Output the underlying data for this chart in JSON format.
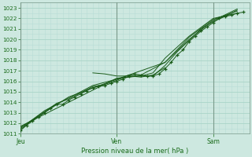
{
  "xlabel": "Pression niveau de la mer( hPa )",
  "ylim": [
    1011,
    1023.5
  ],
  "yticks": [
    1011,
    1012,
    1013,
    1014,
    1015,
    1016,
    1017,
    1018,
    1019,
    1020,
    1021,
    1022,
    1023
  ],
  "day_labels": [
    "Jeu",
    "Ven",
    "Sam"
  ],
  "day_positions": [
    0,
    48,
    96
  ],
  "xlim": [
    0,
    114
  ],
  "background_color": "#cde8e0",
  "grid_major_color": "#aad4c8",
  "grid_minor_color": "#b8ddd6",
  "vline_color": "#7a9a8a",
  "line_color": "#1a5c1a",
  "marker_color": "#1a5c1a",
  "text_color": "#1a6b1a",
  "series1_x": [
    0,
    3,
    6,
    9,
    12,
    15,
    18,
    21,
    24,
    27,
    30,
    33,
    36,
    39,
    42,
    45,
    48,
    51,
    54,
    57,
    60,
    63,
    66,
    69,
    72,
    75,
    78,
    81,
    84,
    87,
    90,
    93,
    96,
    99,
    102,
    105,
    108,
    111
  ],
  "series1_y": [
    1011.3,
    1011.8,
    1012.2,
    1012.6,
    1013.0,
    1013.4,
    1013.8,
    1013.8,
    1014.2,
    1014.5,
    1014.8,
    1015.1,
    1015.4,
    1015.5,
    1015.6,
    1015.8,
    1016.0,
    1016.2,
    1016.5,
    1016.7,
    1016.6,
    1016.5,
    1016.5,
    1016.7,
    1017.2,
    1017.8,
    1018.5,
    1019.0,
    1019.8,
    1020.3,
    1020.8,
    1021.2,
    1021.6,
    1022.0,
    1022.2,
    1022.3,
    1022.5,
    1022.6
  ],
  "series2_x": [
    0,
    6,
    12,
    18,
    24,
    30,
    36,
    42,
    48,
    54,
    60,
    66,
    72,
    78,
    84,
    90,
    96,
    102,
    108
  ],
  "series2_y": [
    1011.4,
    1012.3,
    1013.1,
    1013.9,
    1014.3,
    1014.9,
    1015.5,
    1015.7,
    1016.1,
    1016.6,
    1016.5,
    1016.5,
    1017.5,
    1018.8,
    1019.9,
    1021.0,
    1021.7,
    1022.2,
    1022.8
  ],
  "series3_x": [
    0,
    12,
    24,
    36,
    48,
    60,
    72,
    84,
    96,
    108
  ],
  "series3_y": [
    1011.5,
    1013.2,
    1014.4,
    1015.6,
    1016.2,
    1016.6,
    1017.8,
    1020.0,
    1021.8,
    1022.9
  ],
  "series4_x": [
    0,
    24,
    48,
    72,
    84,
    96,
    108
  ],
  "series4_y": [
    1011.6,
    1014.5,
    1016.2,
    1017.8,
    1020.2,
    1021.9,
    1022.7
  ],
  "series5_x": [
    0,
    48,
    60,
    66,
    72,
    84,
    96,
    108
  ],
  "series5_y": [
    1011.7,
    1016.3,
    1016.5,
    1016.8,
    1018.2,
    1020.3,
    1022.0,
    1022.5
  ],
  "series6_x": [
    36,
    42,
    48,
    54,
    60,
    66,
    72
  ],
  "series6_y": [
    1016.8,
    1016.7,
    1016.5,
    1016.5,
    1016.4,
    1016.6,
    1017.3
  ]
}
